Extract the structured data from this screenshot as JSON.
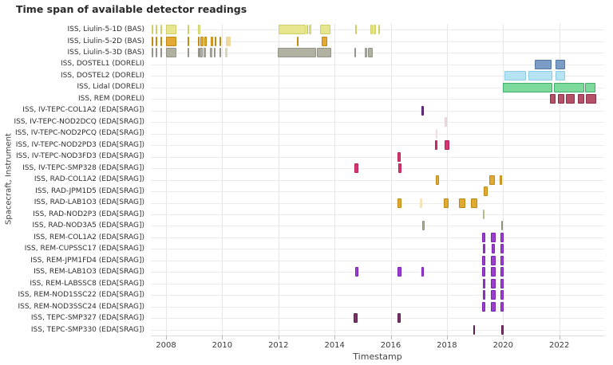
{
  "title": "Time span of available detector readings",
  "chart_data": {
    "type": "bar",
    "subtype": "horizontal time-range (gantt) timeline",
    "title": "Time span of available detector readings",
    "xlabel": "Timestamp",
    "ylabel": "Spacecraft, Instrument",
    "x_ticks": [
      2008,
      2010,
      2012,
      2014,
      2016,
      2018,
      2020,
      2022
    ],
    "x_tick_labels": [
      "2008",
      "2010",
      "2012",
      "2014",
      "2016",
      "2018",
      "2020",
      "2022"
    ],
    "xlim": [
      2007.46,
      2023.6
    ],
    "grid": "on",
    "legend": "none",
    "rows": [
      {
        "label": "ISS, Liulin-5-1D (BAS)",
        "color": "#e6e68e",
        "border": "#cfcf6a",
        "bars": [
          [
            2007.49,
            2007.55
          ],
          [
            2007.63,
            2007.69
          ],
          [
            2007.79,
            2007.85
          ],
          [
            2008.0,
            2008.38
          ],
          [
            2008.76,
            2008.83
          ],
          [
            2009.13,
            2009.21
          ],
          [
            2012.0,
            2012.97
          ],
          [
            2013.0,
            2013.06
          ],
          [
            2013.09,
            2013.16
          ],
          [
            2013.47,
            2013.86
          ],
          [
            2014.73,
            2014.78
          ],
          [
            2015.27,
            2015.37
          ],
          [
            2015.4,
            2015.47
          ],
          [
            2015.56,
            2015.6
          ]
        ]
      },
      {
        "label": "ISS, Liulin-5-2D (BAS)",
        "color": "#e2a838",
        "border": "#c28a12",
        "bars": [
          [
            2007.49,
            2007.55
          ],
          [
            2007.63,
            2007.69
          ],
          [
            2007.79,
            2007.85
          ],
          [
            2008.0,
            2008.36
          ],
          [
            2008.76,
            2008.83
          ],
          [
            2009.13,
            2009.19
          ],
          [
            2009.21,
            2009.33
          ],
          [
            2009.35,
            2009.44
          ],
          [
            2009.59,
            2009.68
          ],
          [
            2009.72,
            2009.78
          ],
          [
            2009.91,
            2009.97
          ],
          [
            2010.13,
            2010.29,
            "#f0d9a0"
          ],
          [
            2012.67,
            2012.73
          ],
          [
            2013.54,
            2013.74
          ]
        ]
      },
      {
        "label": "ISS, Liulin-5-3D (BAS)",
        "color": "#b1b1a2",
        "border": "#94948a",
        "bars": [
          [
            2007.49,
            2007.55
          ],
          [
            2007.63,
            2007.69
          ],
          [
            2007.79,
            2007.85
          ],
          [
            2008.0,
            2008.36
          ],
          [
            2008.76,
            2008.83
          ],
          [
            2009.13,
            2009.19
          ],
          [
            2009.18,
            2009.31
          ],
          [
            2009.34,
            2009.42
          ],
          [
            2009.57,
            2009.66
          ],
          [
            2009.7,
            2009.76
          ],
          [
            2009.89,
            2009.95
          ],
          [
            2010.11,
            2010.18,
            "#d5d5c8"
          ],
          [
            2011.98,
            2013.34
          ],
          [
            2013.38,
            2013.89
          ],
          [
            2014.71,
            2014.76
          ],
          [
            2015.08,
            2015.15
          ],
          [
            2015.2,
            2015.37
          ]
        ]
      },
      {
        "label": "ISS, DOSTEL1 (DORELI)",
        "color": "#7b9cc4",
        "border": "#5577a6",
        "bars": [
          [
            2021.12,
            2021.74
          ],
          [
            2021.86,
            2022.22
          ]
        ]
      },
      {
        "label": "ISS, DOSTEL2 (DORELI)",
        "color": "#b5e3f2",
        "border": "#8ecbe5",
        "bars": [
          [
            2020.04,
            2020.81
          ],
          [
            2020.89,
            2021.76
          ],
          [
            2021.86,
            2022.22
          ]
        ]
      },
      {
        "label": "ISS, Lidal (DORELI)",
        "color": "#7ed99d",
        "border": "#42ac6b",
        "bars": [
          [
            2020.0,
            2021.76
          ],
          [
            2021.82,
            2022.88
          ],
          [
            2022.93,
            2023.28
          ]
        ]
      },
      {
        "label": "ISS, REM (DORELI)",
        "color": "#b55069",
        "border": "#8e2f4a",
        "bars": [
          [
            2021.67,
            2021.86
          ],
          [
            2021.94,
            2022.18
          ],
          [
            2022.24,
            2022.55
          ],
          [
            2022.66,
            2022.9
          ],
          [
            2022.95,
            2023.33
          ]
        ]
      },
      {
        "label": "ISS, IV-TEPC-COL1A2 (EDA[SRAG])",
        "color": "#6b2d85",
        "border": "#54206b",
        "bars": [
          [
            2017.1,
            2017.19
          ]
        ]
      },
      {
        "label": "ISS, IV-TEPC-NOD2DCQ (EDA[SRAG])",
        "color": "#f2dae4",
        "border": "#eccdd9",
        "bars": [
          [
            2017.91,
            2017.99
          ]
        ]
      },
      {
        "label": "ISS, IV-TEPC-NOD2PCQ (EDA[SRAG])",
        "color": "#f6e7ed",
        "border": "#f0dae3",
        "bars": [
          [
            2017.6,
            2017.66
          ]
        ]
      },
      {
        "label": "ISS, IV-TEPC-NOD2PD3 (EDA[SRAG])",
        "color": "#d63771",
        "border": "#b52459",
        "bars": [
          [
            2017.57,
            2017.66
          ],
          [
            2017.92,
            2018.08
          ]
        ]
      },
      {
        "label": "ISS, IV-TEPC-NOD3FD3 (EDA[SRAG])",
        "color": "#d63771",
        "border": "#b52459",
        "bars": [
          [
            2016.24,
            2016.36
          ]
        ]
      },
      {
        "label": "ISS, IV-TEPC-SMP328 (EDA[SRAG])",
        "color": "#d63771",
        "border": "#b52459",
        "bars": [
          [
            2014.71,
            2014.84
          ],
          [
            2016.27,
            2016.37
          ]
        ]
      },
      {
        "label": "ISS, RAD-COL1A2 (EDA[SRAG])",
        "color": "#dfaa33",
        "border": "#bf8a13",
        "bars": [
          [
            2017.6,
            2017.71
          ],
          [
            2019.52,
            2019.71
          ],
          [
            2019.87,
            2019.96
          ]
        ]
      },
      {
        "label": "ISS, RAD-JPM1D5 (EDA[SRAG])",
        "color": "#dfaa33",
        "border": "#bf8a13",
        "bars": [
          [
            2019.32,
            2019.44
          ]
        ]
      },
      {
        "label": "ISS, RAD-LAB1O3 (EDA[SRAG])",
        "color": "#dfaa33",
        "border": "#bf8a13",
        "bars": [
          [
            2016.25,
            2016.39
          ],
          [
            2017.04,
            2017.11,
            "#f3e3bb"
          ],
          [
            2017.9,
            2018.07
          ],
          [
            2018.43,
            2018.66
          ],
          [
            2018.85,
            2019.08
          ]
        ]
      },
      {
        "label": "ISS, RAD-NOD2P3 (EDA[SRAG])",
        "color": "#ccd1ad",
        "border": "#b3b98e",
        "bars": [
          [
            2019.27,
            2019.34
          ]
        ]
      },
      {
        "label": "ISS, RAD-NOD3A5 (EDA[SRAG])",
        "color": "#aab094",
        "border": "#8f957a",
        "bars": [
          [
            2017.12,
            2017.2
          ],
          [
            2019.92,
            2020.0
          ]
        ]
      },
      {
        "label": "ISS, REM-COL1A2 (EDA[SRAG])",
        "color": "#9a41cc",
        "border": "#7d22b4",
        "bars": [
          [
            2019.26,
            2019.38
          ],
          [
            2019.55,
            2019.73
          ],
          [
            2019.91,
            2020.03
          ]
        ]
      },
      {
        "label": "ISS, REM-CUPSSC17 (EDA[SRAG])",
        "color": "#9a41cc",
        "border": "#7d22b4",
        "bars": [
          [
            2019.28,
            2019.37
          ],
          [
            2019.58,
            2019.71
          ],
          [
            2019.91,
            2020.02
          ]
        ]
      },
      {
        "label": "ISS, REM-JPM1FD4 (EDA[SRAG])",
        "color": "#9a41cc",
        "border": "#7d22b4",
        "bars": [
          [
            2019.26,
            2019.38
          ],
          [
            2019.55,
            2019.72
          ],
          [
            2019.91,
            2020.03
          ]
        ]
      },
      {
        "label": "ISS, REM-LAB1O3 (EDA[SRAG])",
        "color": "#9a41cc",
        "border": "#7d22b4",
        "bars": [
          [
            2014.73,
            2014.86
          ],
          [
            2016.25,
            2016.39
          ],
          [
            2017.1,
            2017.18
          ],
          [
            2019.26,
            2019.38
          ],
          [
            2019.55,
            2019.73
          ],
          [
            2019.91,
            2020.03
          ]
        ]
      },
      {
        "label": "ISS, REM-LABSSC8 (EDA[SRAG])",
        "color": "#9a41cc",
        "border": "#7d22b4",
        "bars": [
          [
            2019.29,
            2019.37
          ],
          [
            2019.55,
            2019.72
          ],
          [
            2019.91,
            2020.02
          ]
        ]
      },
      {
        "label": "ISS, REM-NOD1SSC22 (EDA[SRAG])",
        "color": "#9a41cc",
        "border": "#7d22b4",
        "bars": [
          [
            2019.28,
            2019.37
          ],
          [
            2019.55,
            2019.72
          ],
          [
            2019.91,
            2020.02
          ]
        ]
      },
      {
        "label": "ISS, REM-NOD3SSC24 (EDA[SRAG])",
        "color": "#9a41cc",
        "border": "#7d22b4",
        "bars": [
          [
            2019.26,
            2019.38
          ],
          [
            2019.55,
            2019.73
          ],
          [
            2019.91,
            2020.03
          ]
        ]
      },
      {
        "label": "ISS, TEPC-SMP327 (EDA[SRAG])",
        "color": "#7c3168",
        "border": "#5f1f4e",
        "bars": [
          [
            2014.68,
            2014.83
          ],
          [
            2016.25,
            2016.37
          ]
        ]
      },
      {
        "label": "ISS, TEPC-SMP330 (EDA[SRAG])",
        "color": "#7c3168",
        "border": "#5f1f4e",
        "bars": [
          [
            2018.93,
            2019.0
          ],
          [
            2019.94,
            2020.01
          ]
        ]
      }
    ]
  },
  "colors": {
    "background": "#ffffff",
    "gridline": "#e6e6e6",
    "axis_line": "#dcdcdc",
    "tick": "#b8b8b8",
    "text": "#333333"
  }
}
